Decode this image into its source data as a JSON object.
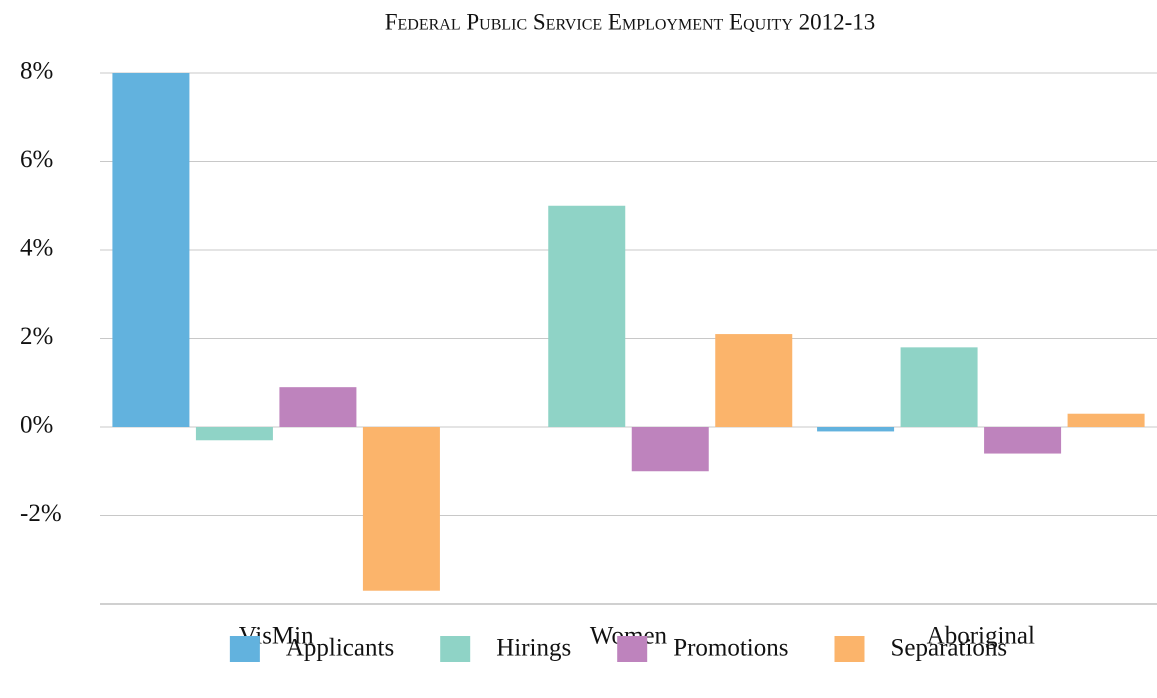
{
  "chart_data": {
    "type": "bar",
    "title": "Federal Public Service Employment Equity 2012-13",
    "categories": [
      "VisMin",
      "Women",
      "Aboriginal"
    ],
    "series": [
      {
        "name": "Applicants",
        "color": "#62b2de",
        "values": [
          8.0,
          0,
          -0.1
        ]
      },
      {
        "name": "Hirings",
        "color": "#8fd3c6",
        "values": [
          -0.3,
          5.0,
          1.8
        ]
      },
      {
        "name": "Promotions",
        "color": "#be83bd",
        "values": [
          0.9,
          -1.0,
          -0.6
        ]
      },
      {
        "name": "Separations",
        "color": "#fbb46b",
        "values": [
          -3.7,
          2.1,
          0.3
        ]
      }
    ],
    "ylim": [
      -4,
      8
    ],
    "yticks": [
      {
        "value": -2,
        "label": "-2%"
      },
      {
        "value": 0,
        "label": "0%"
      },
      {
        "value": 2,
        "label": "2%"
      },
      {
        "value": 4,
        "label": "4%"
      },
      {
        "value": 6,
        "label": "6%"
      },
      {
        "value": 8,
        "label": "8%"
      }
    ],
    "grid": true,
    "legend": "bottom"
  }
}
